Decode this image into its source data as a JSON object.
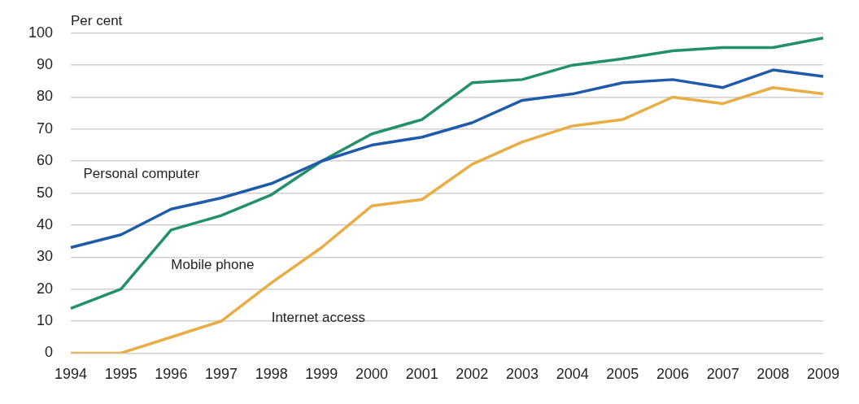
{
  "chart_data": {
    "type": "line",
    "ylabel": "Per cent",
    "categories": [
      "1994",
      "1995",
      "1996",
      "1997",
      "1998",
      "1999",
      "2000",
      "2001",
      "2002",
      "2003",
      "2004",
      "2005",
      "2006",
      "2007",
      "2008",
      "2009"
    ],
    "series": [
      {
        "name": "Personal computer",
        "color": "#1f5ba8",
        "values": [
          33,
          37,
          45,
          48.5,
          53,
          60,
          65,
          67.5,
          72,
          79,
          81,
          84.5,
          85.5,
          83,
          88.5,
          86.5
        ]
      },
      {
        "name": "Mobile phone",
        "color": "#23906a",
        "values": [
          14,
          20,
          38.5,
          43,
          49.5,
          60,
          68.5,
          73,
          84.5,
          85.5,
          90,
          92,
          94.5,
          95.5,
          95.5,
          98.5
        ]
      },
      {
        "name": "Internet access",
        "color": "#e8ad45",
        "values": [
          0,
          0,
          5,
          10,
          22,
          33,
          46,
          48,
          59,
          66,
          71,
          73,
          80,
          78,
          83,
          81
        ]
      }
    ],
    "ylim": [
      0,
      100
    ],
    "yticks": [
      0,
      10,
      20,
      30,
      40,
      50,
      60,
      70,
      80,
      90,
      100
    ],
    "grid": "y",
    "legend": false,
    "marker": "none",
    "line_style": "solid"
  }
}
